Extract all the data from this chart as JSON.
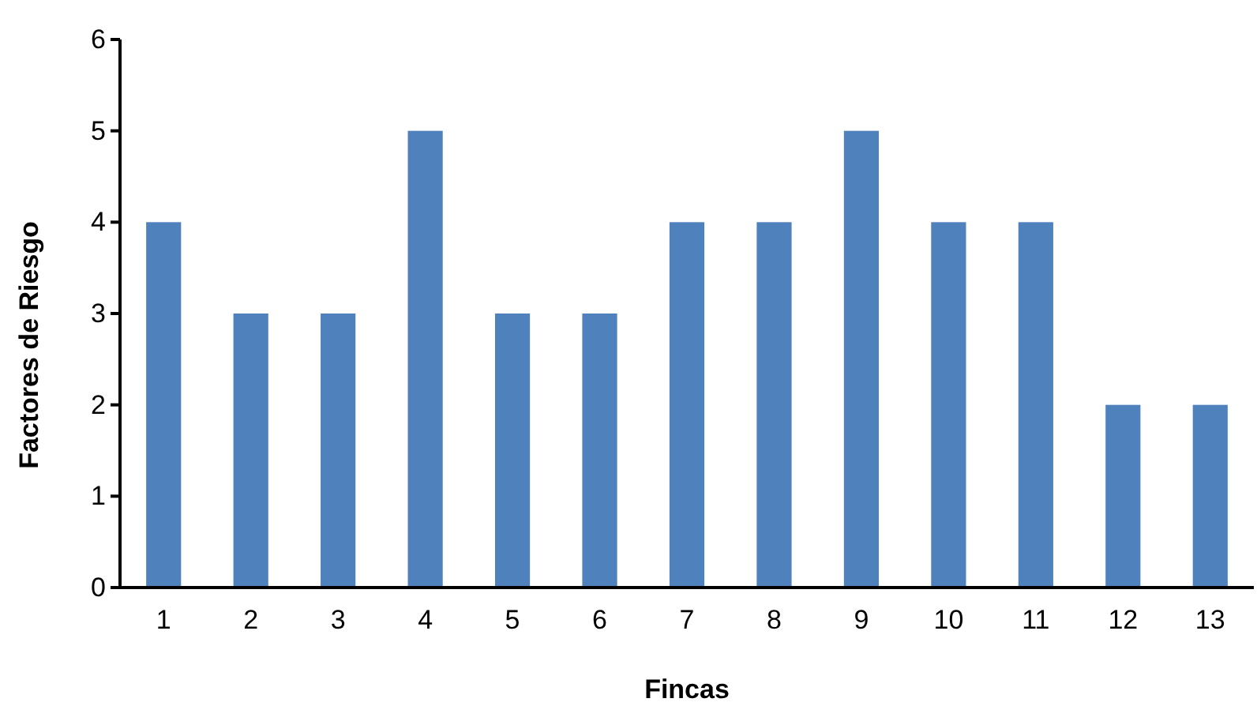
{
  "chart_data": {
    "type": "bar",
    "xlabel": "Fincas",
    "ylabel": "Factores de Riesgo",
    "categories": [
      "1",
      "2",
      "3",
      "4",
      "5",
      "6",
      "7",
      "8",
      "9",
      "10",
      "11",
      "12",
      "13"
    ],
    "values": [
      4,
      3,
      3,
      5,
      3,
      3,
      4,
      4,
      5,
      4,
      4,
      2,
      2
    ],
    "color": "#4f81bd",
    "ylim": [
      0,
      6
    ],
    "yticks": [
      0,
      1,
      2,
      3,
      4,
      5,
      6
    ],
    "grid": false
  }
}
